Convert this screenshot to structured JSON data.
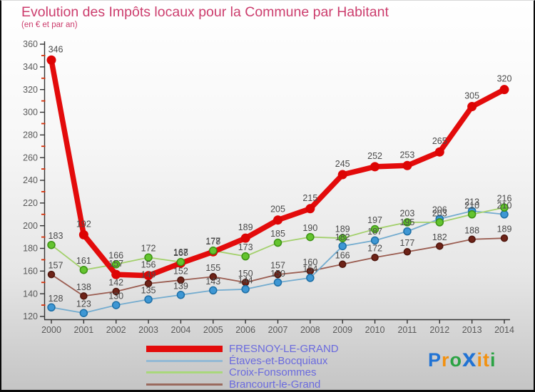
{
  "title": "Evolution des Impôts locaux pour la Commune par Habitant",
  "subtitle": "(en € et par an)",
  "colors": {
    "title_text": "#cc3d6d",
    "legend_text": "#6a6ade",
    "axis": "#333333",
    "minor_tick": "#d52f08",
    "data_label": "#4a4a4a",
    "background_top": "#ffffff",
    "background_bottom": "#c5c5c5"
  },
  "chart_data": {
    "type": "line",
    "title": "Evolution des Impôts locaux pour la Commune par Habitant",
    "subtitle": "(en € et par an)",
    "xlabel": "",
    "ylabel": "",
    "x": [
      2000,
      2001,
      2002,
      2003,
      2004,
      2005,
      2006,
      2007,
      2008,
      2009,
      2010,
      2011,
      2012,
      2013,
      2014
    ],
    "ylim": [
      120,
      360
    ],
    "ytick_major_step": 20,
    "ytick_minor_step": 10,
    "grid": false,
    "legend_position": "bottom-left",
    "point_labels_shown": true,
    "series": [
      {
        "name": "FRESNOY-LE-GRAND",
        "values": [
          346,
          192,
          157,
          156,
          167,
          177,
          189,
          205,
          215,
          245,
          252,
          253,
          265,
          305,
          320
        ],
        "line_color": "#e30b0b",
        "dot_color": "#dd0404",
        "dot_stroke": "#c50303",
        "legend_color": "#e30b0b",
        "line_width": 7.5,
        "dot_radius": 6.5,
        "thick": true
      },
      {
        "name": "Étaves-et-Bocquiaux",
        "values": [
          128,
          123,
          130,
          135,
          139,
          143,
          144,
          150,
          154,
          182,
          187,
          195,
          206,
          213,
          210
        ],
        "line_color": "#74accf",
        "dot_color": "#3e97d4",
        "dot_stroke": "#1d6fa6",
        "legend_color": "#93b9d4",
        "line_width": 1.8,
        "dot_radius": 5,
        "thick": false
      },
      {
        "name": "Croix-Fonsommes",
        "values": [
          183,
          161,
          166,
          172,
          168,
          178,
          173,
          185,
          190,
          189,
          197,
          203,
          203,
          210,
          216
        ],
        "line_color": "#a3d06c",
        "dot_color": "#64c42f",
        "dot_stroke": "#3c9214",
        "legend_color": "#a9d87b",
        "line_width": 1.8,
        "dot_radius": 5,
        "thick": false
      },
      {
        "name": "Brancourt-le-Grand",
        "values": [
          157,
          138,
          142,
          149,
          152,
          155,
          150,
          157,
          160,
          166,
          172,
          177,
          182,
          188,
          189
        ],
        "line_color": "#9a5c50",
        "dot_color": "#6e2318",
        "dot_stroke": "#4e160d",
        "legend_color": "#9a6a5e",
        "line_width": 1.8,
        "dot_radius": 4.5,
        "thick": false
      }
    ]
  },
  "logo": {
    "name": "Proxiti",
    "letters": [
      {
        "ch": "P",
        "color": "#2173d4",
        "big": false
      },
      {
        "ch": "r",
        "color": "#f29111",
        "big": false
      },
      {
        "ch": "o",
        "color": "#2ba344",
        "big": false
      },
      {
        "ch": "x",
        "color": "#2173d4",
        "big": true
      },
      {
        "ch": "i",
        "color": "#f29111",
        "big": false
      },
      {
        "ch": "t",
        "color": "#f29111",
        "big": false
      },
      {
        "ch": "i",
        "color": "#2ba344",
        "big": false
      }
    ]
  }
}
